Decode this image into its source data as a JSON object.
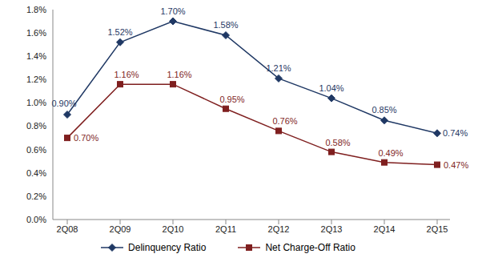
{
  "chart_data": {
    "type": "line",
    "categories": [
      "2Q08",
      "2Q09",
      "2Q10",
      "2Q11",
      "2Q12",
      "2Q13",
      "2Q14",
      "2Q15"
    ],
    "series": [
      {
        "name": "Delinquency Ratio",
        "color": "#1f3864",
        "marker": "diamond",
        "values": [
          0.9,
          1.52,
          1.7,
          1.58,
          1.21,
          1.04,
          0.85,
          0.74
        ],
        "value_labels": [
          "0.90%",
          "1.52%",
          "1.70%",
          "1.58%",
          "1.21%",
          "1.04%",
          "0.85%",
          "0.74%"
        ]
      },
      {
        "name": "Net Charge-Off Ratio",
        "color": "#7f1f1f",
        "marker": "square",
        "values": [
          0.7,
          1.16,
          1.16,
          0.95,
          0.76,
          0.58,
          0.49,
          0.47
        ],
        "value_labels": [
          "0.70%",
          "1.16%",
          "1.16%",
          "0.95%",
          "0.76%",
          "0.58%",
          "0.49%",
          "0.47%"
        ]
      }
    ],
    "ylim": [
      0,
      1.8
    ],
    "yticks": [
      {
        "value": 0,
        "label": "0.0%"
      },
      {
        "value": 0.2,
        "label": "0.2%"
      },
      {
        "value": 0.4,
        "label": "0.4%"
      },
      {
        "value": 0.6,
        "label": "0.6%"
      },
      {
        "value": 0.8,
        "label": "0.8%"
      },
      {
        "value": 1.0,
        "label": "1.0%"
      },
      {
        "value": 1.2,
        "label": "1.2%"
      },
      {
        "value": 1.4,
        "label": "1.4%"
      },
      {
        "value": 1.6,
        "label": "1.6%"
      },
      {
        "value": 1.8,
        "label": "1.8%"
      }
    ],
    "grid": false,
    "legend": "bottom",
    "data_labels": true
  }
}
